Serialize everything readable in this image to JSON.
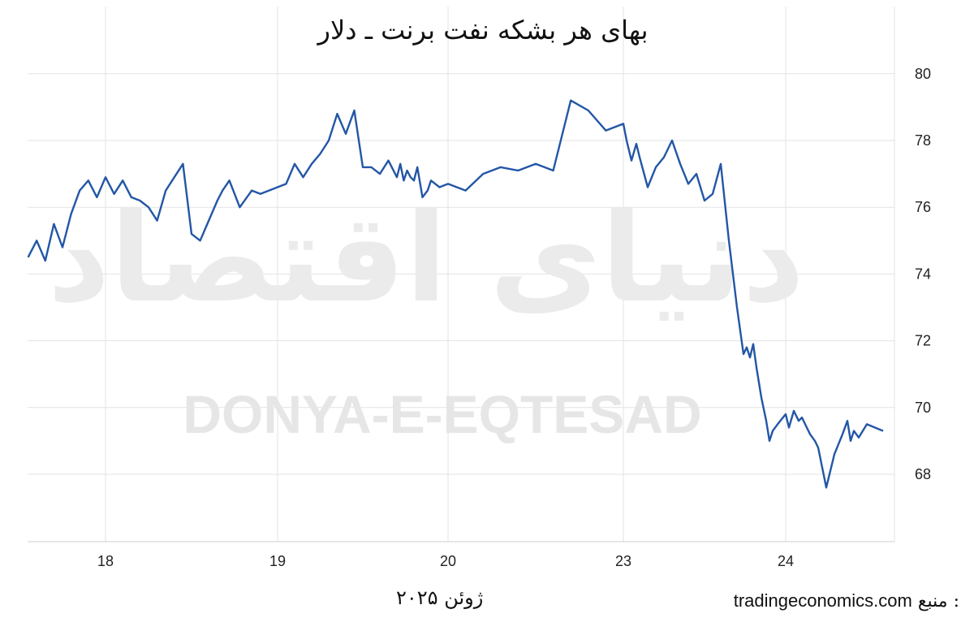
{
  "chart_data": {
    "type": "line",
    "title": "بهای هر بشکه نفت برنت ـ دلار",
    "xlabel": "ژوئن ۲۰۲۵",
    "ylabel": "",
    "ylim": [
      66,
      81
    ],
    "yticks": [
      68,
      70,
      72,
      74,
      76,
      78,
      80
    ],
    "y_axis_position": "right",
    "grid": true,
    "x_tick_labels": [
      "18",
      "19",
      "20",
      "23",
      "24"
    ],
    "x_range_days": [
      17.55,
      24.6
    ],
    "series": [
      {
        "color": "#2356a6",
        "x": [
          17.55,
          17.6,
          17.65,
          17.7,
          17.75,
          17.8,
          17.85,
          17.9,
          17.95,
          18.0,
          18.05,
          18.1,
          18.15,
          18.2,
          18.25,
          18.3,
          18.35,
          18.4,
          18.45,
          18.5,
          18.55,
          18.6,
          18.65,
          18.68,
          18.72,
          18.78,
          18.85,
          18.9,
          18.95,
          19.0,
          19.05,
          19.1,
          19.15,
          19.2,
          19.25,
          19.3,
          19.35,
          19.4,
          19.45,
          19.5,
          19.55,
          19.6,
          19.65,
          19.7,
          19.72,
          19.74,
          19.76,
          19.78,
          19.8,
          19.82,
          19.85,
          19.88,
          19.9,
          19.95,
          20.0,
          20.1,
          20.2,
          20.3,
          20.4,
          20.5,
          20.6,
          20.7,
          20.8,
          20.9,
          21.0,
          21.02,
          21.05,
          21.08,
          21.1,
          21.15,
          21.2,
          21.25,
          21.3,
          21.35,
          21.4,
          21.45,
          21.5,
          21.55,
          21.6,
          21.65,
          21.7,
          21.72,
          21.74,
          21.76,
          21.78,
          21.8,
          21.82,
          21.85,
          21.88,
          21.9,
          21.92,
          21.95,
          22.0,
          22.02,
          22.05,
          22.08,
          22.1,
          22.12,
          22.15,
          22.18,
          22.2,
          22.25,
          22.3,
          22.35,
          22.38,
          22.4,
          22.42,
          22.45,
          22.5,
          22.55,
          22.6
        ],
        "values": [
          74.5,
          75.0,
          74.4,
          75.5,
          74.8,
          75.8,
          76.5,
          76.8,
          76.3,
          76.9,
          76.4,
          76.8,
          76.3,
          76.2,
          76.0,
          75.6,
          76.5,
          76.9,
          77.3,
          75.2,
          75.0,
          75.6,
          76.2,
          76.5,
          76.8,
          76.0,
          76.5,
          76.4,
          76.5,
          76.6,
          76.7,
          77.3,
          76.9,
          77.3,
          77.6,
          78.0,
          78.8,
          78.2,
          78.9,
          77.2,
          77.2,
          77.0,
          77.4,
          76.9,
          77.3,
          76.8,
          77.1,
          76.9,
          76.8,
          77.2,
          76.3,
          76.5,
          76.8,
          76.6,
          76.7,
          76.5,
          77.0,
          77.2,
          77.1,
          77.3,
          77.1,
          79.2,
          78.9,
          78.3,
          78.5,
          78.0,
          77.4,
          77.9,
          77.5,
          76.6,
          77.2,
          77.5,
          78.0,
          77.3,
          76.7,
          77.0,
          76.2,
          76.4,
          77.3,
          75.0,
          73.0,
          72.3,
          71.6,
          71.8,
          71.5,
          71.9,
          71.2,
          70.3,
          69.6,
          69.0,
          69.3,
          69.5,
          69.8,
          69.4,
          69.9,
          69.6,
          69.7,
          69.5,
          69.2,
          69.0,
          68.8,
          67.6,
          68.6,
          69.2,
          69.6,
          69.0,
          69.3,
          69.1,
          69.5,
          69.4,
          69.3
        ]
      }
    ],
    "watermark_fa": "دنیای اقتصاد",
    "watermark_en": "DONYA-E-EQTESAD"
  },
  "caption": {
    "date_label": "ژوئن ۲۰۲۵",
    "source_label": "منبع :",
    "source_value": "tradingeconomics.com"
  }
}
